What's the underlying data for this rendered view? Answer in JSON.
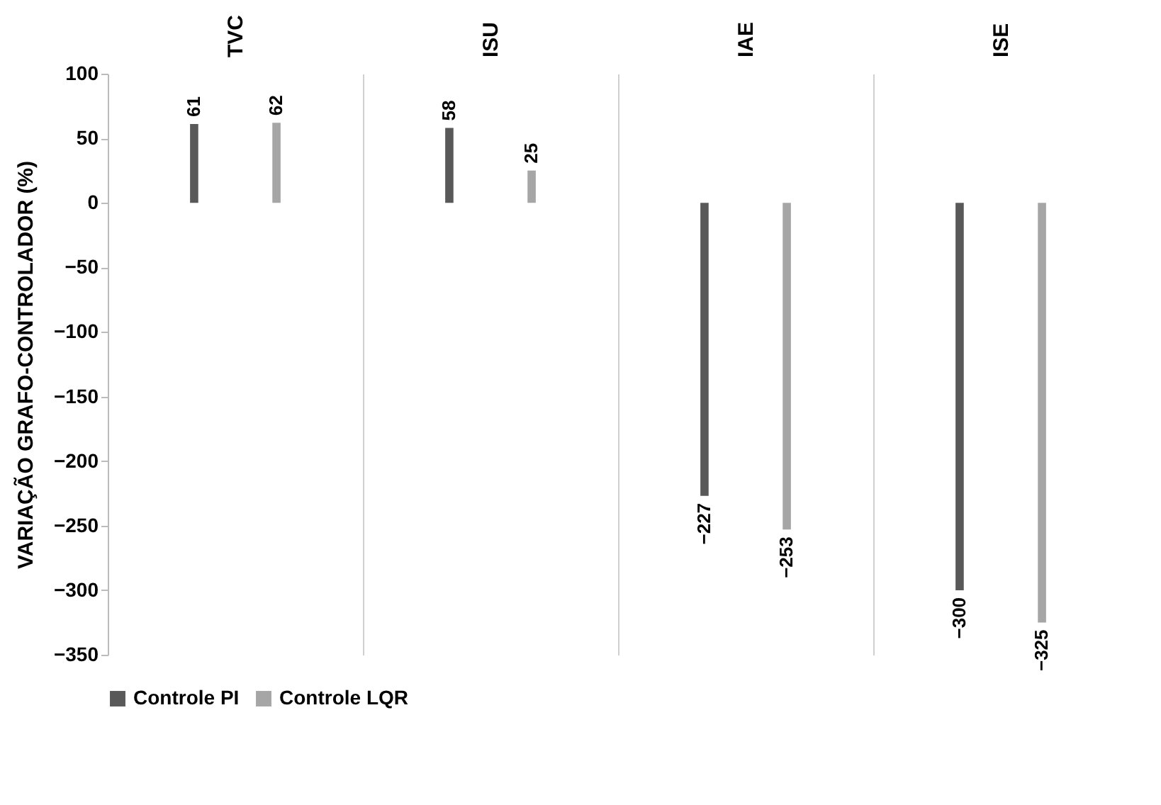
{
  "chart_data": {
    "type": "bar",
    "ylabel": "VARIAÇÃO GRAFO-CONTROLADOR (%)",
    "categories": [
      "TVC",
      "ISU",
      "IAE",
      "ISE"
    ],
    "series": [
      {
        "name": "Controle PI",
        "color": "#595959",
        "values": [
          61,
          58,
          -227,
          -300
        ]
      },
      {
        "name": "Controle LQR",
        "color": "#a6a6a6",
        "values": [
          62,
          25,
          -253,
          -325
        ]
      }
    ],
    "ylim": [
      -350,
      100
    ],
    "yticks": [
      -350,
      -300,
      -250,
      -200,
      -150,
      -100,
      -50,
      0,
      50,
      100
    ],
    "grid": "x",
    "legend": "bottom",
    "data_labels": true
  }
}
